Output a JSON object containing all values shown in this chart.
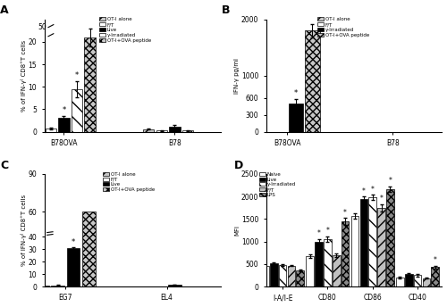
{
  "panel_A": {
    "ylabel": "% of IFN-γ⁾ CD8⁺T cells",
    "groups": [
      "B78OVA",
      "B78"
    ],
    "conditions": [
      "OT-I alone",
      "F/T",
      "Live",
      "γ-Irradiated",
      "OT-I+OVA peptide"
    ],
    "values": {
      "B78OVA": [
        0.6,
        0.8,
        3.1,
        9.5,
        21.0
      ],
      "B78": [
        0.6,
        0.3,
        1.2,
        0.3,
        0.0
      ]
    },
    "errors": {
      "B78OVA": [
        0.15,
        0.2,
        0.5,
        1.8,
        2.0
      ],
      "B78": [
        0.1,
        0.1,
        0.4,
        0.1,
        0.0
      ]
    },
    "stars": [
      [
        "B78OVA",
        "Live"
      ],
      [
        "B78OVA",
        "γ-Irradiated"
      ]
    ]
  },
  "panel_B": {
    "ylabel": "IFN-γ pg/ml",
    "groups": [
      "B78OVA",
      "B78"
    ],
    "conditions": [
      "OT-I alone",
      "F/T",
      "γ-Irradiated",
      "OT-I+OVA peptide"
    ],
    "values": {
      "B78OVA": [
        0,
        0,
        500,
        1800
      ],
      "B78": [
        0,
        0,
        0,
        0
      ]
    },
    "errors": {
      "B78OVA": [
        0,
        0,
        80,
        120
      ],
      "B78": [
        0,
        0,
        0,
        0
      ]
    },
    "stars": [
      [
        "B78OVA",
        "γ-Irradiated"
      ]
    ]
  },
  "panel_C": {
    "ylabel": "% of IFN-γ⁾ CD8⁺T cells",
    "groups": [
      "EG7",
      "EL4"
    ],
    "conditions": [
      "OT-I alone",
      "F/T",
      "Live",
      "OT-I+OVA peptide"
    ],
    "values": {
      "EG7": [
        0.5,
        1.0,
        30.5,
        60.0
      ],
      "EL4": [
        0.0,
        0.0,
        1.5,
        0.0
      ]
    },
    "errors": {
      "EG7": [
        0.1,
        0.2,
        1.2,
        0.0
      ],
      "EL4": [
        0.0,
        0.0,
        0.3,
        0.0
      ]
    },
    "stars": [
      [
        "EG7",
        "Live"
      ]
    ]
  },
  "panel_D": {
    "ylabel": "MFI",
    "groups": [
      "I-A/I-E",
      "CD80",
      "CD86",
      "CD40"
    ],
    "conditions": [
      "Naive",
      "Live",
      "γ-Irradiated",
      "F/T",
      "LPS"
    ],
    "values": {
      "I-A/I-E": [
        460,
        510,
        480,
        465,
        350
      ],
      "CD80": [
        680,
        1000,
        1060,
        700,
        1440
      ],
      "CD86": [
        1560,
        1940,
        1980,
        1750,
        2170
      ],
      "CD40": [
        200,
        270,
        250,
        190,
        430
      ]
    },
    "errors": {
      "I-A/I-E": [
        15,
        20,
        25,
        15,
        20
      ],
      "CD80": [
        40,
        60,
        60,
        40,
        80
      ],
      "CD86": [
        60,
        60,
        60,
        80,
        60
      ],
      "CD40": [
        15,
        20,
        20,
        15,
        30
      ]
    },
    "stars": [
      [
        "CD80",
        "Live"
      ],
      [
        "CD80",
        "γ-Irradiated"
      ],
      [
        "CD80",
        "LPS"
      ],
      [
        "CD86",
        "Live"
      ],
      [
        "CD86",
        "γ-Irradiated"
      ],
      [
        "CD86",
        "F/T"
      ],
      [
        "CD86",
        "LPS"
      ],
      [
        "CD40",
        "LPS"
      ]
    ]
  }
}
